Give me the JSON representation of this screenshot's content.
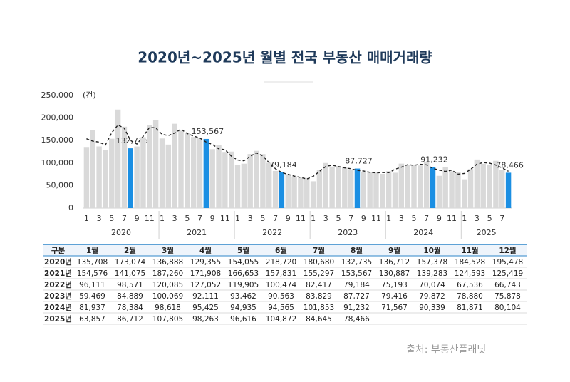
{
  "chart_data": {
    "type": "bar",
    "title": "2020년~2025년 월별 전국 부동산 매매거래량",
    "y_unit_label": "(건)",
    "x_groups": [
      "2020",
      "2021",
      "2022",
      "2023",
      "2024",
      "2025"
    ],
    "categories": [
      "1",
      null,
      "3",
      null,
      "5",
      null,
      "7",
      null,
      "9",
      null,
      "11",
      null,
      "1",
      null,
      "3",
      null,
      "5",
      null,
      "7",
      null,
      "9",
      null,
      "11",
      null,
      "1",
      null,
      "3",
      null,
      "5",
      null,
      "7",
      null,
      "9",
      null,
      "11",
      null,
      "1",
      null,
      "3",
      null,
      "5",
      null,
      "7",
      null,
      "9",
      null,
      "11",
      null,
      "1",
      null,
      "3",
      null,
      "5",
      null,
      "7",
      null,
      "9",
      null,
      "11",
      null,
      "1",
      null,
      "3",
      null,
      "5",
      null,
      "7",
      null
    ],
    "ylim": [
      0,
      250000
    ],
    "yticks": [
      0,
      {
        "value": 50000,
        "label": "50,000"
      },
      {
        "value": 100000,
        "label": "100,000"
      },
      {
        "value": 150000,
        "label": "150,000"
      },
      {
        "value": 200000,
        "label": "200,000"
      },
      {
        "value": 250000,
        "label": "250,000"
      }
    ],
    "series": [
      {
        "color": "#d9d9d9",
        "highlight_color": "#1b8fe3",
        "values": [
          135708,
          173074,
          136888,
          129355,
          154055,
          218720,
          180680,
          132735,
          136712,
          157378,
          184528,
          195478,
          154576,
          141075,
          187260,
          171908,
          166653,
          157831,
          155297,
          153567,
          130887,
          139283,
          124593,
          125419,
          96111,
          98571,
          120085,
          127052,
          119905,
          100474,
          82417,
          79184,
          75193,
          70074,
          67536,
          66743,
          59469,
          84889,
          100069,
          92111,
          93462,
          90563,
          83829,
          87727,
          79416,
          79872,
          78880,
          75878,
          81937,
          78384,
          98618,
          95425,
          94935,
          94565,
          101853,
          91232,
          71567,
          90339,
          81871,
          80104,
          63857,
          86712,
          107805,
          98263,
          96616,
          104872,
          84645,
          78466
        ],
        "value_labels": [
          null,
          null,
          null,
          null,
          null,
          null,
          null,
          "132,735",
          null,
          null,
          null,
          null,
          null,
          null,
          null,
          null,
          null,
          null,
          null,
          "153,567",
          null,
          null,
          null,
          null,
          null,
          null,
          null,
          null,
          null,
          null,
          null,
          "79,184",
          null,
          null,
          null,
          null,
          null,
          null,
          null,
          null,
          null,
          null,
          null,
          "87,727",
          null,
          null,
          null,
          null,
          null,
          null,
          null,
          null,
          null,
          null,
          null,
          "91,232",
          null,
          null,
          null,
          null,
          null,
          null,
          null,
          null,
          null,
          null,
          null,
          "78,466"
        ]
      },
      {
        "type": "line",
        "color": "#222222",
        "dash": true,
        "values": [
          154000,
          148600,
          146500,
          140100,
          167400,
          184500,
          177400,
          150000,
          142300,
          159500,
          179100,
          178200,
          163700,
          161000,
          166800,
          175300,
          165500,
          159900,
          155600,
          146600,
          141300,
          131600,
          129800,
          115400,
          106700,
          104900,
          115300,
          122400,
          115800,
          100900,
          87400,
          78900,
          74800,
          70900,
          68100,
          64600,
          70400,
          81500,
          92400,
          95200,
          92100,
          89300,
          87400,
          83600,
          82300,
          79400,
          78200,
          78900,
          78700,
          86300,
          90800,
          96300,
          95000,
          97100,
          95900,
          88200,
          84400,
          81300,
          84100,
          75300,
          76900,
          86100,
          97600,
          100900,
          99900,
          95400,
          89300,
          81600
        ]
      }
    ]
  },
  "table": {
    "header": [
      "구분",
      "1월",
      "2월",
      "3월",
      "4월",
      "5월",
      "6월",
      "7월",
      "8월",
      "9월",
      "10월",
      "11월",
      "12월"
    ],
    "rows": [
      [
        "2020년",
        "135,708",
        "173,074",
        "136,888",
        "129,355",
        "154,055",
        "218,720",
        "180,680",
        "132,735",
        "136,712",
        "157,378",
        "184,528",
        "195,478"
      ],
      [
        "2021년",
        "154,576",
        "141,075",
        "187,260",
        "171,908",
        "166,653",
        "157,831",
        "155,297",
        "153,567",
        "130,887",
        "139,283",
        "124,593",
        "125,419"
      ],
      [
        "2022년",
        "96,111",
        "98,571",
        "120,085",
        "127,052",
        "119,905",
        "100,474",
        "82,417",
        "79,184",
        "75,193",
        "70,074",
        "67,536",
        "66,743"
      ],
      [
        "2023년",
        "59,469",
        "84,889",
        "100,069",
        "92,111",
        "93,462",
        "90,563",
        "83,829",
        "87,727",
        "79,416",
        "79,872",
        "78,880",
        "75,878"
      ],
      [
        "2024년",
        "81,937",
        "78,384",
        "98,618",
        "95,425",
        "94,935",
        "94,565",
        "101,853",
        "91,232",
        "71,567",
        "90,339",
        "81,871",
        "80,104"
      ],
      [
        "2025년",
        "63,857",
        "86,712",
        "107,805",
        "98,263",
        "96,616",
        "104,872",
        "84,645",
        "78,466"
      ]
    ]
  },
  "source": "출처: 부동산플래닛"
}
